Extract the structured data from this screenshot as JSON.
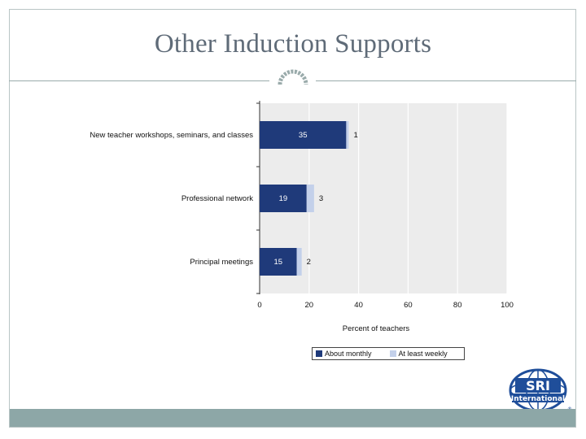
{
  "title": "Other Induction Supports",
  "colors": {
    "about_monthly": "#1f3a7a",
    "at_least_weekly": "#c3d0ea",
    "plot_bg": "#ececec"
  },
  "legend": {
    "about_monthly": "About monthly",
    "at_least_weekly": "At least weekly"
  },
  "logo": {
    "text_top": "SRI",
    "text_bottom": "International"
  },
  "chart_data": {
    "type": "bar",
    "orientation": "horizontal",
    "stacked": true,
    "categories": [
      "New teacher workshops, seminars, and classes",
      "Professional network",
      "Principal meetings"
    ],
    "series": [
      {
        "name": "About monthly",
        "values": [
          35,
          19,
          15
        ]
      },
      {
        "name": "At least weekly",
        "values": [
          1,
          3,
          2
        ]
      }
    ],
    "xlabel": "Percent of teachers",
    "xlim": [
      0,
      100
    ],
    "xticks": [
      "0",
      "20",
      "40",
      "60",
      "80",
      "100"
    ],
    "legend_position": "bottom"
  }
}
